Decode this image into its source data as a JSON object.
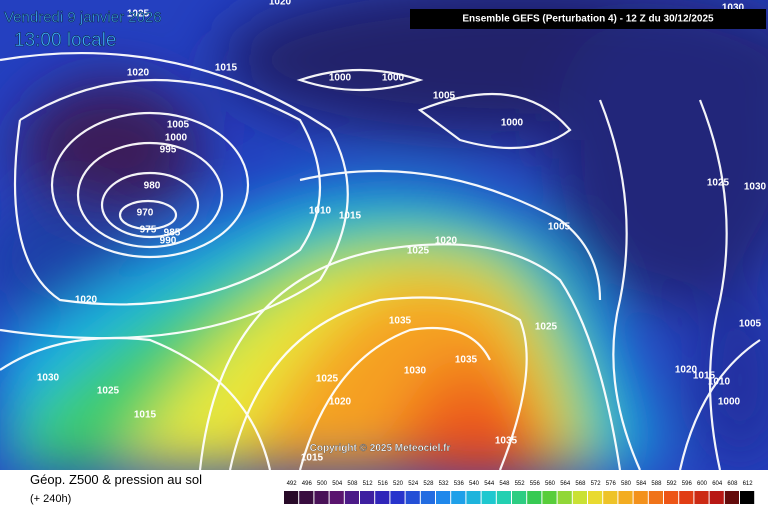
{
  "header": {
    "date": "Vendredi 9 janvier 2026",
    "time": "13:00 locale",
    "run": "Ensemble GEFS  (Perturbation 4)  -  12 Z du 30/12/2025"
  },
  "isobar_labels": [
    "1025",
    "1020",
    "1030",
    "1020",
    "1015",
    "1000",
    "1000",
    "1005",
    "1000",
    "1005",
    "1000",
    "995",
    "980",
    "970",
    "975",
    "985",
    "990",
    "1010",
    "1015",
    "1020",
    "1025",
    "1005",
    "1025",
    "1030",
    "1020",
    "1035",
    "1025",
    "1035",
    "1030",
    "1030",
    "1025",
    "1025",
    "1020",
    "1015",
    "1035",
    "1020",
    "1015",
    "1010",
    "1005",
    "1000",
    "1015"
  ],
  "copyright": "Copyright © 2025 Meteociel.fr",
  "footer": {
    "title": "Géop. Z500 & pression au sol",
    "lead": "(+ 240h)"
  },
  "legend": {
    "ticks": [
      492,
      496,
      500,
      504,
      508,
      512,
      516,
      520,
      524,
      528,
      532,
      536,
      540,
      544,
      548,
      552,
      556,
      560,
      564,
      568,
      572,
      576,
      580,
      584,
      588,
      592,
      596,
      600,
      604,
      608,
      612
    ]
  }
}
